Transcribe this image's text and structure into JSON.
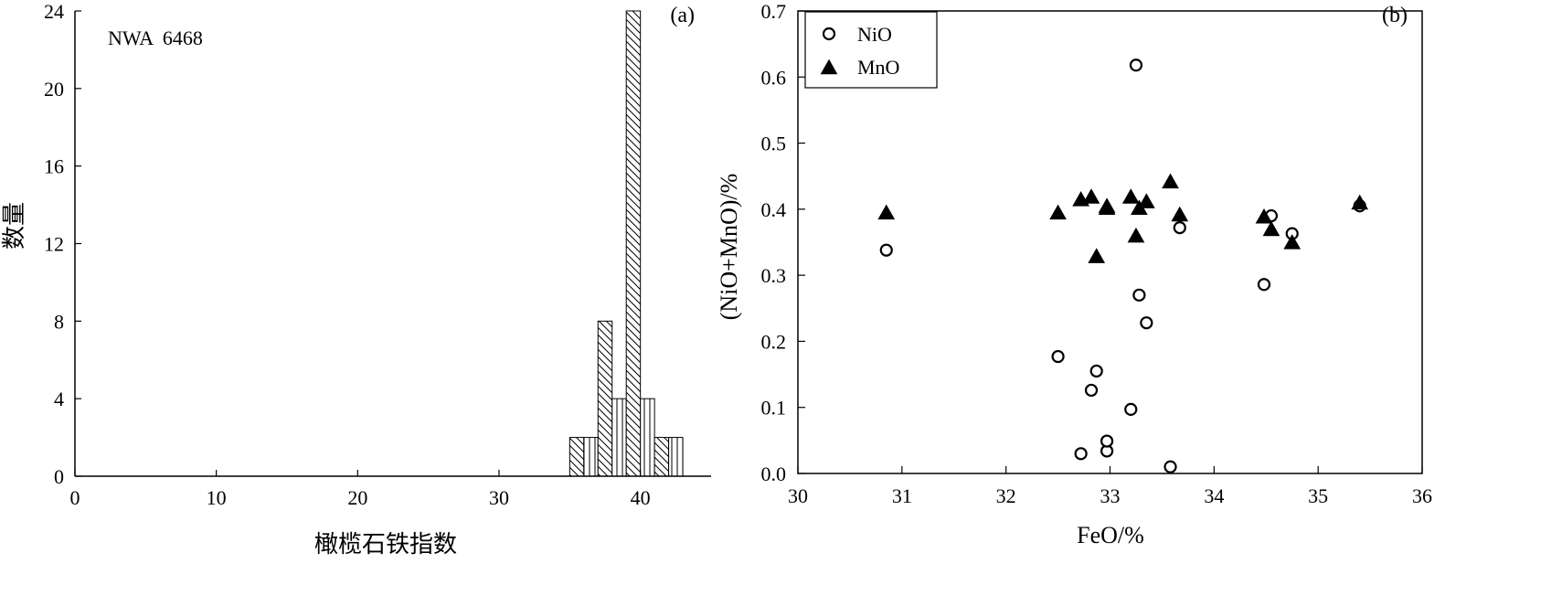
{
  "chart_data": [
    {
      "type": "bar",
      "panel_label": "(a)",
      "annotation": "NWA  6468",
      "xlabel": "橄榄石铁指数",
      "ylabel": "数量",
      "xlim": [
        0,
        45
      ],
      "ylim": [
        0,
        24
      ],
      "xticks": [
        0,
        10,
        20,
        30,
        40
      ],
      "yticks": [
        0,
        4,
        8,
        12,
        16,
        20,
        24
      ],
      "bin_width": 1,
      "bars": [
        {
          "x0": 35,
          "x1": 36,
          "value": 2,
          "pattern": "backslash"
        },
        {
          "x0": 36,
          "x1": 37,
          "value": 2,
          "pattern": "vertical"
        },
        {
          "x0": 37,
          "x1": 38,
          "value": 8,
          "pattern": "backslash"
        },
        {
          "x0": 38,
          "x1": 39,
          "value": 4,
          "pattern": "vertical"
        },
        {
          "x0": 39,
          "x1": 40,
          "value": 24,
          "pattern": "backslash"
        },
        {
          "x0": 40,
          "x1": 41,
          "value": 4,
          "pattern": "vertical"
        },
        {
          "x0": 41,
          "x1": 42,
          "value": 2,
          "pattern": "backslash"
        },
        {
          "x0": 42,
          "x1": 43,
          "value": 2,
          "pattern": "vertical"
        }
      ]
    },
    {
      "type": "scatter",
      "panel_label": "(b)",
      "xlabel": "FeO/%",
      "ylabel": "(NiO+MnO)/%",
      "xlim": [
        30,
        36
      ],
      "ylim": [
        0,
        0.7
      ],
      "xticks": [
        30,
        31,
        32,
        33,
        34,
        35,
        36
      ],
      "yticks": [
        0.0,
        0.1,
        0.2,
        0.3,
        0.4,
        0.5,
        0.6,
        0.7
      ],
      "ytick_labels": [
        "0.0",
        "0.1",
        "0.2",
        "0.3",
        "0.4",
        "0.5",
        "0.6",
        "0.7"
      ],
      "legend_position": "top-left",
      "series": [
        {
          "name": "NiO",
          "marker": "open-circle",
          "points": [
            [
              30.85,
              0.338
            ],
            [
              32.5,
              0.177
            ],
            [
              32.72,
              0.03
            ],
            [
              32.82,
              0.126
            ],
            [
              32.87,
              0.155
            ],
            [
              32.97,
              0.034
            ],
            [
              32.97,
              0.049
            ],
            [
              33.2,
              0.097
            ],
            [
              33.25,
              0.618
            ],
            [
              33.28,
              0.27
            ],
            [
              33.35,
              0.228
            ],
            [
              33.58,
              0.01
            ],
            [
              33.67,
              0.372
            ],
            [
              34.48,
              0.286
            ],
            [
              34.55,
              0.39
            ],
            [
              34.75,
              0.363
            ],
            [
              35.4,
              0.405
            ]
          ]
        },
        {
          "name": "MnO",
          "marker": "filled-triangle",
          "points": [
            [
              30.85,
              0.393
            ],
            [
              32.5,
              0.393
            ],
            [
              32.72,
              0.413
            ],
            [
              32.82,
              0.417
            ],
            [
              32.87,
              0.327
            ],
            [
              32.97,
              0.403
            ],
            [
              32.97,
              0.4
            ],
            [
              33.2,
              0.417
            ],
            [
              33.25,
              0.358
            ],
            [
              33.28,
              0.4
            ],
            [
              33.35,
              0.41
            ],
            [
              33.58,
              0.44
            ],
            [
              33.67,
              0.39
            ],
            [
              34.48,
              0.387
            ],
            [
              34.55,
              0.368
            ],
            [
              34.75,
              0.348
            ],
            [
              35.4,
              0.408
            ]
          ]
        }
      ]
    }
  ]
}
